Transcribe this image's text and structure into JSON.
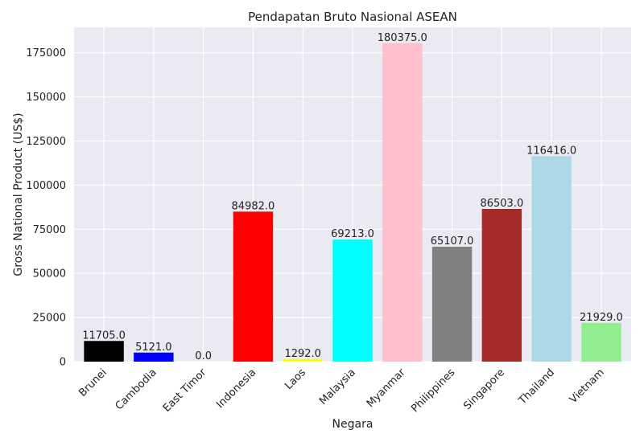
{
  "chart_data": {
    "type": "bar",
    "title": "Pendapatan Bruto Nasional ASEAN",
    "xlabel": "Negara",
    "ylabel": "Gross National Product (US$)",
    "categories": [
      "Brunei",
      "Cambodia",
      "East Timor",
      "Indonesia",
      "Laos",
      "Malaysia",
      "Myanmar",
      "Philippines",
      "Singapore",
      "Thailand",
      "Vietnam"
    ],
    "values": [
      11705.0,
      5121.0,
      0.0,
      84982.0,
      1292.0,
      69213.0,
      180375.0,
      65107.0,
      86503.0,
      116416.0,
      21929.0
    ],
    "value_labels": [
      "11705.0",
      "5121.0",
      "0.0",
      "84982.0",
      "1292.0",
      "69213.0",
      "180375.0",
      "65107.0",
      "86503.0",
      "116416.0",
      "21929.0"
    ],
    "colors": [
      "#000000",
      "#0000ff",
      "#eaeaf2",
      "#ff0000",
      "#ffff00",
      "#00ffff",
      "#ffc0cb",
      "#808080",
      "#a52a2a",
      "#add8e6",
      "#90ee90"
    ],
    "yticks": [
      0,
      25000,
      50000,
      75000,
      100000,
      125000,
      150000,
      175000
    ],
    "ylim": [
      0,
      189394
    ],
    "grid": true,
    "background": "#eaeaf2"
  }
}
